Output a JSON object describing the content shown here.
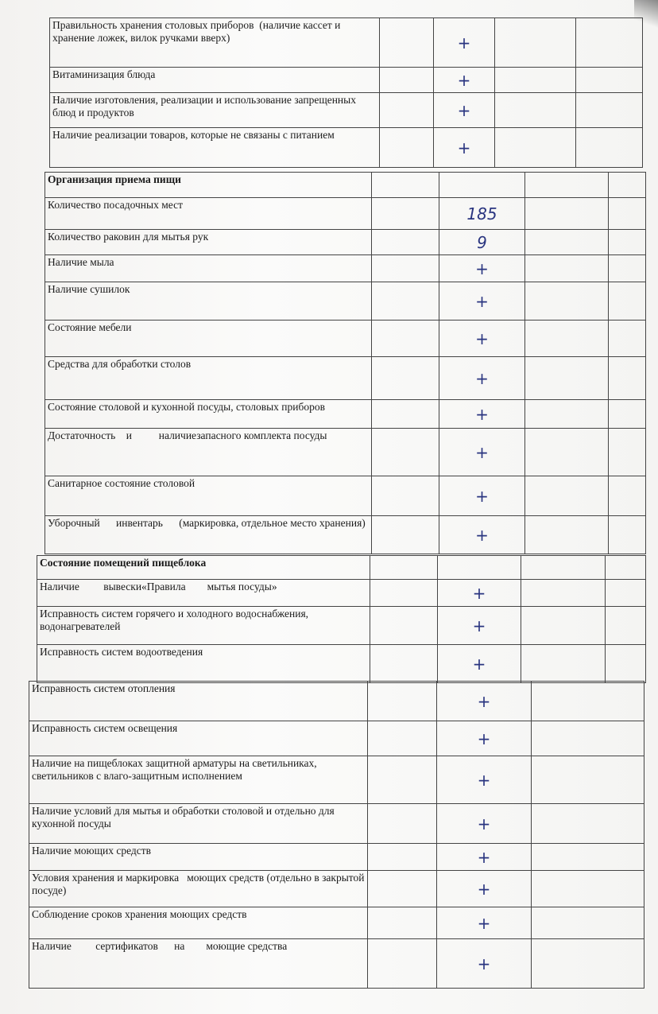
{
  "sections": [
    {
      "id": "a",
      "rows": [
        {
          "label": "Правильность хранения столовых приборов  (наличие кассет и хранение ложек, вилок ручками вверх)",
          "mark": "+"
        },
        {
          "label": "Витаминизация блюда",
          "mark": "+"
        },
        {
          "label": "Наличие изготовления, реализации и использование запрещенных блюд и продуктов",
          "mark": "+"
        },
        {
          "label": "Наличие реализации товаров, которые не связаны с питанием",
          "mark": "+"
        }
      ]
    },
    {
      "id": "b",
      "rows": [
        {
          "label": "Организация приема пищи",
          "mark": "",
          "header": true
        },
        {
          "label": "Количество посадочных мест",
          "mark": "185"
        },
        {
          "label": "Количество раковин для мытья рук",
          "mark": "9"
        },
        {
          "label": "Наличие мыла",
          "mark": "+"
        },
        {
          "label": "Наличие сушилок",
          "mark": "+"
        },
        {
          "label": "Состояние мебели",
          "mark": "+"
        },
        {
          "label": "Средства для обработки столов",
          "mark": "+"
        },
        {
          "label": "Состояние столовой и кухонной посуды, столовых приборов",
          "mark": "+"
        },
        {
          "label": "Достаточность    и          наличиезапасного комплекта посуды",
          "mark": "+"
        },
        {
          "label": "Санитарное состояние столовой",
          "mark": "+"
        },
        {
          "label": "Уборочный      инвентарь      (маркировка, отдельное место хранения)",
          "mark": "+"
        }
      ]
    },
    {
      "id": "c",
      "rows": [
        {
          "label": "Состояние помещений пищеблока",
          "mark": "",
          "header": true
        },
        {
          "label": "Наличие         вывески«Правила        мытья посуды»",
          "mark": "+"
        },
        {
          "label": "Исправность систем горячего и холодного водоснабжения, водонагревателей",
          "mark": "+"
        },
        {
          "label": "Исправность систем водоотведения",
          "mark": "+"
        }
      ]
    },
    {
      "id": "d",
      "rows": [
        {
          "label": "Исправность систем отопления",
          "mark": "+"
        },
        {
          "label": "Исправность систем освещения",
          "mark": "+"
        },
        {
          "label": "Наличие на пищеблоках защитной арматуры на светильниках, светильников с влаго-защитным исполнением",
          "mark": "+"
        },
        {
          "label": "Наличие условий для мытья и обработки столовой и отдельно для кухонной посуды",
          "mark": "+"
        },
        {
          "label": "Наличие моющих средств",
          "mark": "+"
        },
        {
          "label": "Условия хранения и маркировка   моющих средств (отдельно в закрытой посуде)",
          "mark": "+"
        },
        {
          "label": "Соблюдение сроков хранения моющих средств",
          "mark": "+"
        },
        {
          "label": "Наличие         сертификатов      на        моющие средства",
          "mark": "+"
        }
      ]
    }
  ]
}
